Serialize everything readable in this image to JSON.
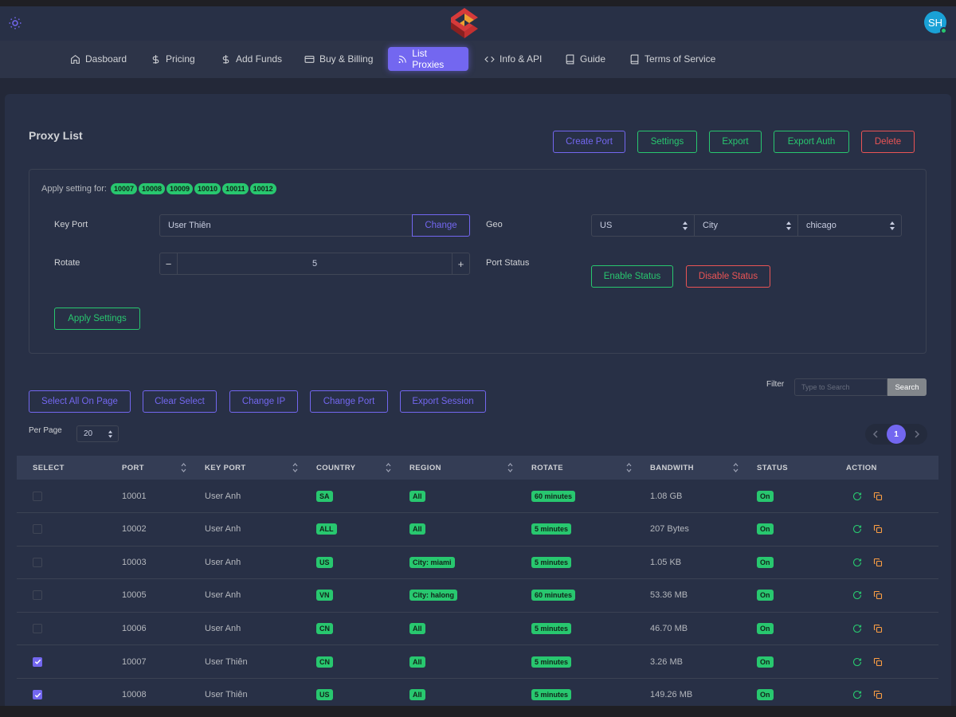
{
  "header": {
    "avatar_initials": "SH"
  },
  "nav": [
    {
      "label": "Dasboard",
      "icon": "home-icon"
    },
    {
      "label": "Pricing",
      "icon": "dollar-icon"
    },
    {
      "label": "Add Funds",
      "icon": "dollar-icon"
    },
    {
      "label": "Buy & Billing",
      "icon": "credit-card-icon"
    },
    {
      "label": "List Proxies",
      "icon": "rss-icon",
      "active": true
    },
    {
      "label": "Info & API",
      "icon": "code-icon"
    },
    {
      "label": "Guide",
      "icon": "book-icon"
    },
    {
      "label": "Terms of Service",
      "icon": "book-icon"
    }
  ],
  "page": {
    "title": "Proxy List",
    "actions": {
      "create": "Create Port",
      "settings": "Settings",
      "export": "Export",
      "export_auth": "Export Auth",
      "delete": "Delete"
    }
  },
  "settings": {
    "apply_for_label": "Apply setting for:",
    "apply_for_ports": [
      "10007",
      "10008",
      "10009",
      "10010",
      "10011",
      "10012"
    ],
    "key_port_label": "Key Port",
    "key_port_value": "User Thiên",
    "change_label": "Change",
    "rotate_label": "Rotate",
    "rotate_value": "5",
    "minus": "−",
    "plus": "+",
    "geo_label": "Geo",
    "geo_country": "US",
    "geo_type": "City",
    "geo_city": "chicago",
    "port_status_label": "Port Status",
    "enable_label": "Enable Status",
    "disable_label": "Disable Status",
    "apply_label": "Apply Settings"
  },
  "toolbar": {
    "select_all": "Select All On Page",
    "clear_select": "Clear Select",
    "change_ip": "Change IP",
    "change_port": "Change Port",
    "export_session": "Export Session",
    "filter_label": "Filter",
    "search_placeholder": "Type to Search",
    "search_label": "Search",
    "per_page_label": "Per Page",
    "per_page_value": "20",
    "current_page": "1"
  },
  "table": {
    "columns": [
      "SELECT",
      "PORT",
      "KEY PORT",
      "COUNTRY",
      "REGION",
      "ROTATE",
      "BANDWITH",
      "STATUS",
      "ACTION"
    ],
    "rows": [
      {
        "selected": false,
        "port": "10001",
        "key_port": "User Anh",
        "country": "SA",
        "region": "All",
        "rotate": "60 minutes",
        "bandwidth": "1.08 GB",
        "status": "On"
      },
      {
        "selected": false,
        "port": "10002",
        "key_port": "User Anh",
        "country": "ALL",
        "region": "All",
        "rotate": "5 minutes",
        "bandwidth": "207 Bytes",
        "status": "On"
      },
      {
        "selected": false,
        "port": "10003",
        "key_port": "User Anh",
        "country": "US",
        "region": "City: miami",
        "rotate": "5 minutes",
        "bandwidth": "1.05 KB",
        "status": "On"
      },
      {
        "selected": false,
        "port": "10005",
        "key_port": "User Anh",
        "country": "VN",
        "region": "City: halong",
        "rotate": "60 minutes",
        "bandwidth": "53.36 MB",
        "status": "On"
      },
      {
        "selected": false,
        "port": "10006",
        "key_port": "User Anh",
        "country": "CN",
        "region": "All",
        "rotate": "5 minutes",
        "bandwidth": "46.70 MB",
        "status": "On"
      },
      {
        "selected": true,
        "port": "10007",
        "key_port": "User Thiên",
        "country": "CN",
        "region": "All",
        "rotate": "5 minutes",
        "bandwidth": "3.26 MB",
        "status": "On"
      },
      {
        "selected": true,
        "port": "10008",
        "key_port": "User Thiên",
        "country": "US",
        "region": "All",
        "rotate": "5 minutes",
        "bandwidth": "149.26 MB",
        "status": "On"
      }
    ]
  },
  "colors": {
    "primary": "#7367f0",
    "success": "#28c76f",
    "danger": "#ea5455",
    "card": "#283046"
  }
}
